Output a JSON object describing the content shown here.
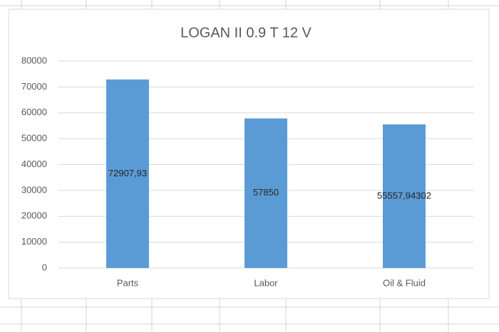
{
  "chart_data": {
    "type": "bar",
    "title": "LOGAN II 0.9 T 12 V",
    "categories": [
      "Parts",
      "Labor",
      "Oil & Fluid"
    ],
    "values": [
      72907.93,
      57850,
      55557.94302
    ],
    "value_labels": [
      "72907,93",
      "57850",
      "55557,94302"
    ],
    "color": "#5b9bd5",
    "ylim": [
      0,
      80000
    ],
    "yticks": [
      0,
      10000,
      20000,
      30000,
      40000,
      50000,
      60000,
      70000,
      80000
    ],
    "grid": true
  }
}
